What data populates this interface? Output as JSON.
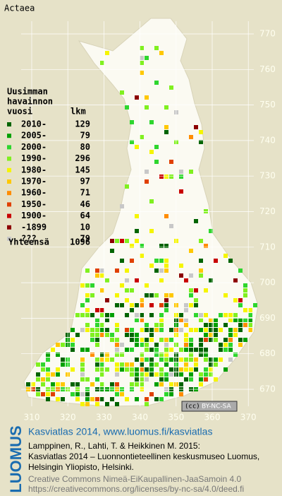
{
  "title": "Actaea",
  "legend": {
    "heading": [
      "Uusimman",
      "havainnon",
      "vuosi"
    ],
    "count_heading": "lkm",
    "items": [
      {
        "label": "2010-",
        "count": 129,
        "color": "#006400"
      },
      {
        "label": "2005-",
        "count": 79,
        "color": "#00a000"
      },
      {
        "label": "2000-",
        "count": 80,
        "color": "#2ed62e"
      },
      {
        "label": "1990-",
        "count": 296,
        "color": "#80f020"
      },
      {
        "label": "1980-",
        "count": 145,
        "color": "#f5f500"
      },
      {
        "label": "1970-",
        "count": 97,
        "color": "#ffc800"
      },
      {
        "label": "1960-",
        "count": 71,
        "color": "#ff8c00"
      },
      {
        "label": "1950-",
        "count": 46,
        "color": "#e04000"
      },
      {
        "label": "1900-",
        "count": 64,
        "color": "#c80000"
      },
      {
        "label": "-1899",
        "count": 10,
        "color": "#8c0000"
      },
      {
        "label": "???",
        "count": 79,
        "color": "#c8c8c8"
      }
    ],
    "total_label": "Yhteensä",
    "total": 1096
  },
  "grid": {
    "north": [
      770,
      760,
      750,
      740,
      730,
      720,
      710,
      700,
      690,
      680,
      670
    ],
    "east": [
      310,
      320,
      330,
      340,
      350,
      360,
      370
    ]
  },
  "license_badge": "BY-NC-SA",
  "footer": {
    "logo": "LUOMUS",
    "heading": "Kasviatlas 2014, www.luomus.fi/kasviatlas",
    "citation": [
      "Lamppinen, R., Lahti, T. & Heikkinen M. 2015:",
      "Kasviatlas 2014 – Luonnontieteellinen keskusmuseo Luomus,",
      "Helsingin Yliopisto, Helsinki."
    ],
    "license": [
      "Creative Commons Nimeä-EiKaupallinen-JaaSamoin 4.0",
      "https://creativecommons.org/licenses/by-nc-sa/4.0/deed.fi"
    ]
  }
}
